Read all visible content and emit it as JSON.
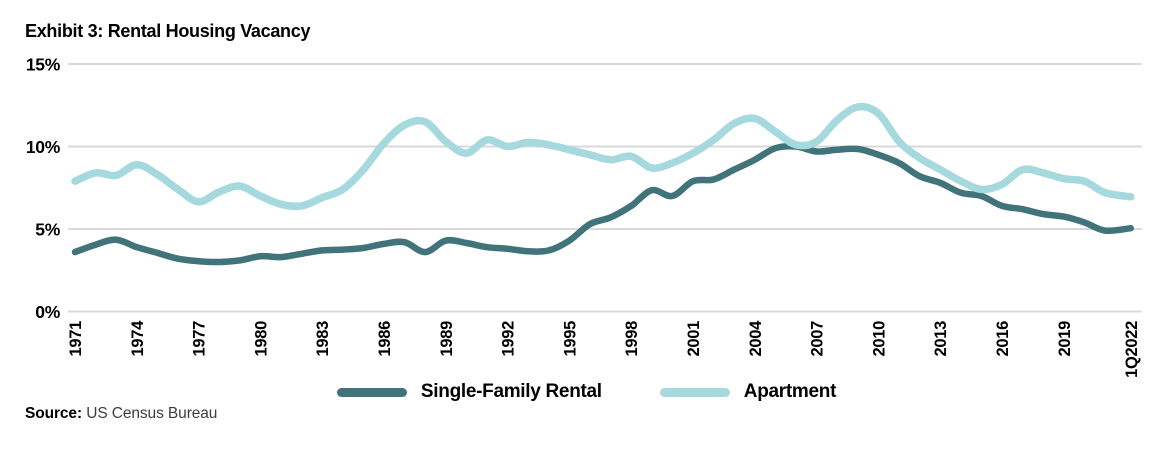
{
  "title": "Exhibit 3: Rental Housing Vacancy",
  "source": {
    "label": "Source:",
    "text": "US Census Bureau"
  },
  "legend": [
    {
      "name": "Single-Family Rental",
      "color": "#40737A"
    },
    {
      "name": "Apartment",
      "color": "#A6D9DE"
    }
  ],
  "colors": {
    "grid": "#D9D9D9",
    "axis_text": "#000000",
    "title_text": "#000000",
    "source_text": "#3D3D3D"
  },
  "chart_data": {
    "type": "line",
    "title": "Exhibit 3: Rental Housing Vacancy",
    "xlabel": "",
    "ylabel": "",
    "xlim": [
      1971,
      2022.25
    ],
    "ylim": [
      0,
      15
    ],
    "grid": "horizontal",
    "legend_position": "bottom",
    "x_note": "final data point is 1Q2022",
    "y_axis": {
      "ticks": [
        {
          "label": "0%",
          "value": 0
        },
        {
          "label": "5%",
          "value": 5
        },
        {
          "label": "10%",
          "value": 10
        },
        {
          "label": "15%",
          "value": 15
        }
      ]
    },
    "x_axis": {
      "ticks": [
        {
          "label": "1971",
          "value": 1971
        },
        {
          "label": "1974",
          "value": 1974
        },
        {
          "label": "1977",
          "value": 1977
        },
        {
          "label": "1980",
          "value": 1980
        },
        {
          "label": "1983",
          "value": 1983
        },
        {
          "label": "1986",
          "value": 1986
        },
        {
          "label": "1989",
          "value": 1989
        },
        {
          "label": "1992",
          "value": 1992
        },
        {
          "label": "1995",
          "value": 1995
        },
        {
          "label": "1998",
          "value": 1998
        },
        {
          "label": "2001",
          "value": 2001
        },
        {
          "label": "2004",
          "value": 2004
        },
        {
          "label": "2007",
          "value": 2007
        },
        {
          "label": "2010",
          "value": 2010
        },
        {
          "label": "2013",
          "value": 2013
        },
        {
          "label": "2016",
          "value": 2016
        },
        {
          "label": "2019",
          "value": 2019
        },
        {
          "label": "1Q2022",
          "value": 2022.25
        }
      ]
    },
    "x": [
      1971,
      1972,
      1973,
      1974,
      1975,
      1976,
      1977,
      1978,
      1979,
      1980,
      1981,
      1982,
      1983,
      1984,
      1985,
      1986,
      1987,
      1988,
      1989,
      1990,
      1991,
      1992,
      1993,
      1994,
      1995,
      1996,
      1997,
      1998,
      1999,
      2000,
      2001,
      2002,
      2003,
      2004,
      2005,
      2006,
      2007,
      2008,
      2009,
      2010,
      2011,
      2012,
      2013,
      2014,
      2015,
      2016,
      2017,
      2018,
      2019,
      2020,
      2021,
      2022.25
    ],
    "series": [
      {
        "name": "Single-Family Rental",
        "color": "#40737A",
        "values": [
          3.6,
          4.05,
          4.35,
          3.9,
          3.55,
          3.2,
          3.05,
          3.0,
          3.1,
          3.35,
          3.3,
          3.5,
          3.7,
          3.75,
          3.85,
          4.1,
          4.2,
          3.6,
          4.3,
          4.15,
          3.9,
          3.8,
          3.65,
          3.7,
          4.3,
          5.3,
          5.7,
          6.4,
          7.35,
          7.0,
          7.9,
          8.0,
          8.6,
          9.2,
          9.9,
          10.0,
          9.7,
          9.8,
          9.85,
          9.5,
          9.0,
          8.2,
          7.8,
          7.2,
          7.0,
          6.4,
          6.2,
          5.9,
          5.75,
          5.4,
          4.9,
          5.05
        ]
      },
      {
        "name": "Apartment",
        "color": "#A6D9DE",
        "values": [
          7.9,
          8.4,
          8.25,
          8.9,
          8.3,
          7.4,
          6.65,
          7.25,
          7.6,
          7.0,
          6.5,
          6.4,
          6.9,
          7.4,
          8.6,
          10.2,
          11.3,
          11.5,
          10.3,
          9.6,
          10.4,
          10.0,
          10.25,
          10.1,
          9.8,
          9.5,
          9.2,
          9.4,
          8.7,
          9.0,
          9.6,
          10.4,
          11.4,
          11.7,
          10.9,
          10.1,
          10.3,
          11.6,
          12.4,
          12.0,
          10.3,
          9.3,
          8.6,
          7.9,
          7.4,
          7.7,
          8.6,
          8.4,
          8.05,
          7.9,
          7.2,
          6.95
        ]
      }
    ]
  }
}
